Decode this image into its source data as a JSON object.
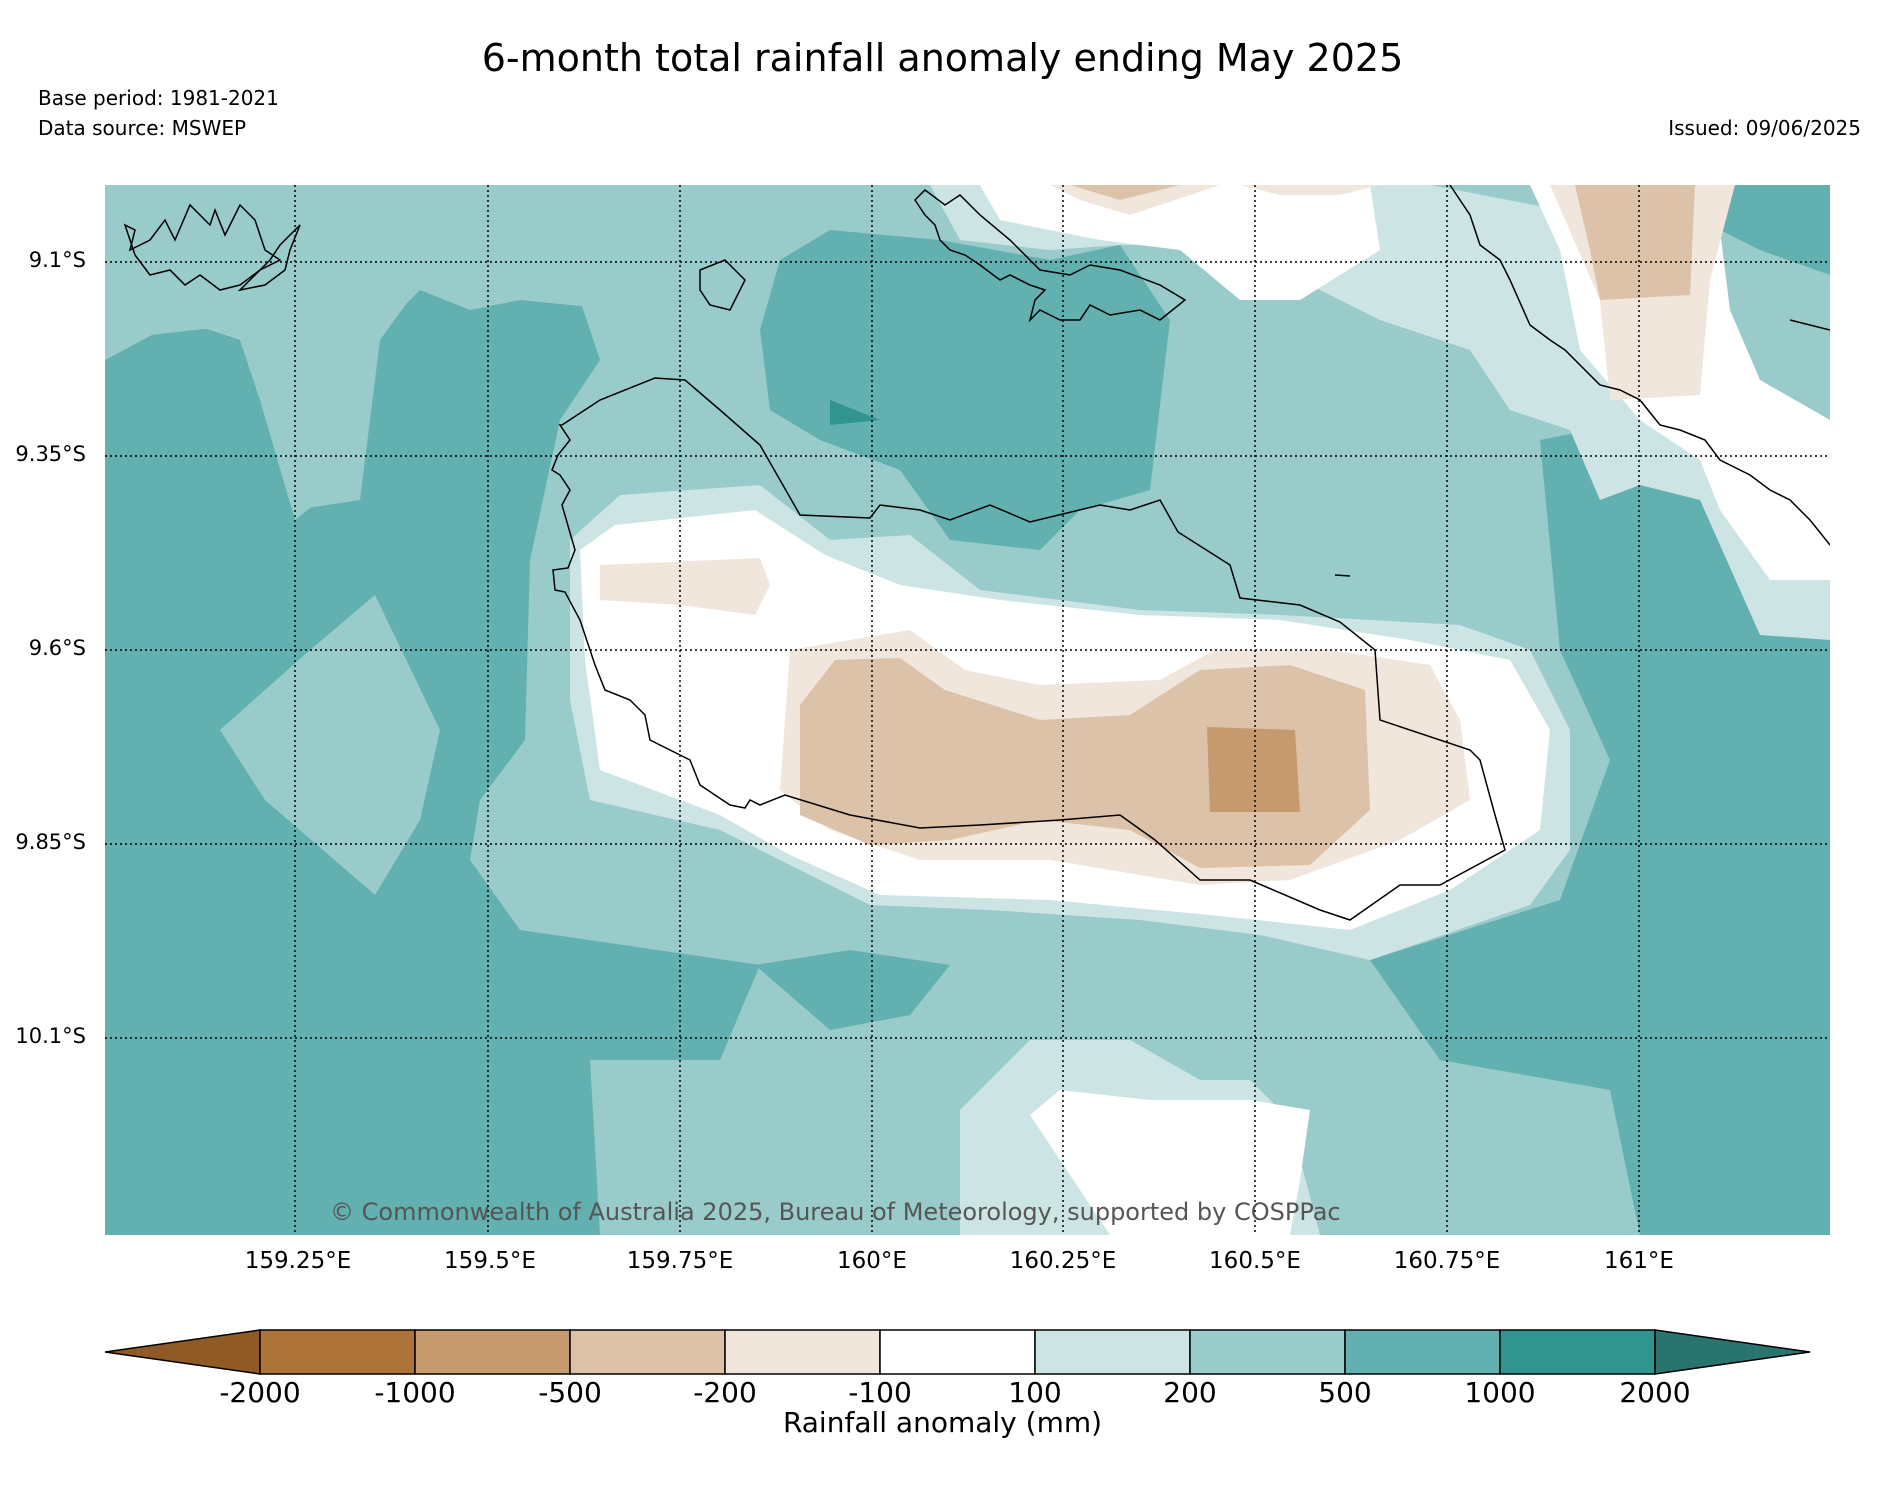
{
  "title": "6-month total rainfall anomaly ending May 2025",
  "base_period": "Base period: 1981-2021",
  "data_source": "Data source: MSWEP",
  "issued": "Issued: 09/06/2025",
  "credit": "© Commonwealth of Australia 2025, Bureau of Meteorology, supported by COSPPac",
  "lat_labels": [
    "9.1°S",
    "9.35°S",
    "9.6°S",
    "9.85°S",
    "10.1°S"
  ],
  "lon_labels": [
    "159.25°E",
    "159.5°E",
    "159.75°E",
    "160°E",
    "160.25°E",
    "160.5°E",
    "160.75°E",
    "161°E"
  ],
  "colorbar": {
    "title": "Rainfall anomaly (mm)",
    "ticks": [
      "-2000",
      "-1000",
      "-500",
      "-200",
      "-100",
      "100",
      "200",
      "500",
      "1000",
      "2000"
    ],
    "colors": [
      "#8f5a24",
      "#ad743a",
      "#c49a6e",
      "#dbc2a8",
      "#f0e6dc",
      "#ffffff",
      "#cce5e4",
      "#99cbcb",
      "#62b0b0",
      "#30958f",
      "#2a7470"
    ]
  },
  "legend_levels": {
    "low": "#dbc2a8",
    "low2": "#c49a6e",
    "slightly_low": "#f0e6dc",
    "neutral": "#ffffff",
    "slightly_high": "#cce5e4",
    "high": "#99cbcb",
    "higher": "#62b0b0",
    "highest": "#30958f"
  }
}
